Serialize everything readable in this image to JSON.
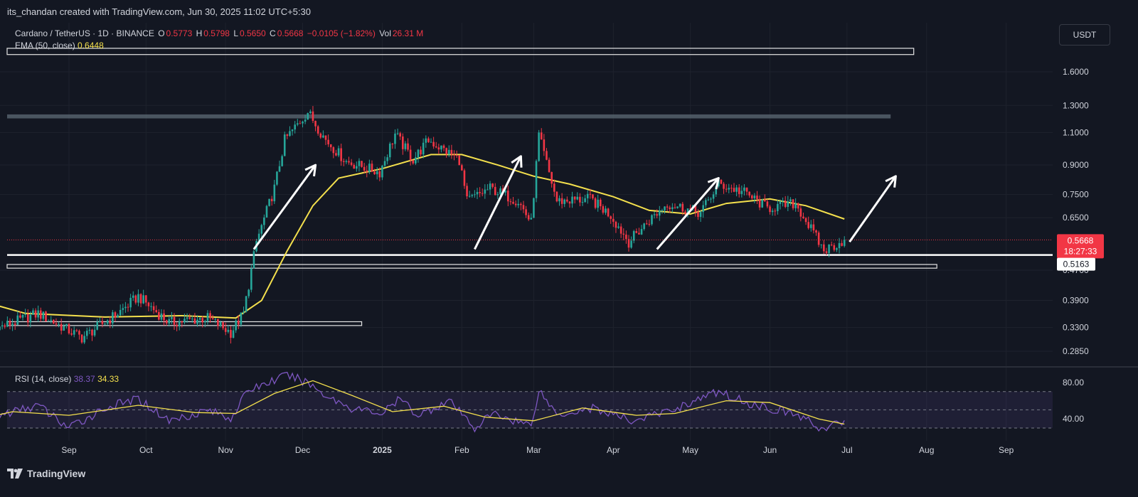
{
  "credit": "its_chandan created with TradingView.com, Jun 30, 2025 11:02 UTC+5:30",
  "legend": {
    "symbol": "Cardano / TetherUS · 1D · BINANCE",
    "o_label": "O",
    "o": "0.5773",
    "h_label": "H",
    "h": "0.5798",
    "l_label": "L",
    "l": "0.5650",
    "c_label": "C",
    "c": "0.5668",
    "change": "−0.0105 (−1.82%)",
    "vol_label": "Vol",
    "vol": "26.31 M"
  },
  "ema_legend": {
    "label": "EMA (50, close)",
    "value": "0.6448"
  },
  "rsi_legend": {
    "label": "RSI (14, close)",
    "rsi": "38.37",
    "ma": "34.33"
  },
  "currency_button": "USDT",
  "brand": "TradingView",
  "colors": {
    "up": "#26a69a",
    "down": "#f23645",
    "ema": "#f4e04d",
    "rsi": "#7e57c2",
    "rsi_ma": "#f4e04d",
    "bg": "#131722"
  },
  "price_badges": [
    {
      "price": "0.5668",
      "countdown": "18:27:33"
    },
    {
      "price": "0.5163"
    }
  ],
  "chart_data": [
    {
      "type": "candlestick",
      "title": "Cardano / TetherUS · 1D · BINANCE",
      "y_scale": "log",
      "y_ticks": [
        "1.6000",
        "1.3000",
        "1.1000",
        "0.9000",
        "0.7500",
        "0.6500",
        "0.4700",
        "0.3900",
        "0.3300",
        "0.2850"
      ],
      "x_ticks": [
        "Sep",
        "Oct",
        "Nov",
        "Dec",
        "2025",
        "Feb",
        "Mar",
        "Apr",
        "May",
        "Jun",
        "Jul",
        "Aug",
        "Sep"
      ],
      "anchors": [
        [
          "2024-07-25",
          0.4
        ],
        [
          "2024-08-05",
          0.33
        ],
        [
          "2024-08-20",
          0.36
        ],
        [
          "2024-09-06",
          0.31
        ],
        [
          "2024-09-20",
          0.36
        ],
        [
          "2024-09-28",
          0.4
        ],
        [
          "2024-10-10",
          0.34
        ],
        [
          "2024-10-25",
          0.35
        ],
        [
          "2024-11-03",
          0.32
        ],
        [
          "2024-11-08",
          0.36
        ],
        [
          "2024-11-13",
          0.56
        ],
        [
          "2024-11-20",
          0.78
        ],
        [
          "2024-11-24",
          1.05
        ],
        [
          "2024-12-03",
          1.25
        ],
        [
          "2024-12-10",
          1.05
        ],
        [
          "2024-12-18",
          0.92
        ],
        [
          "2024-12-31",
          0.86
        ],
        [
          "2025-01-06",
          1.09
        ],
        [
          "2025-01-13",
          0.93
        ],
        [
          "2025-01-19",
          1.05
        ],
        [
          "2025-01-31",
          0.93
        ],
        [
          "2025-02-03",
          0.72
        ],
        [
          "2025-02-12",
          0.78
        ],
        [
          "2025-02-23",
          0.72
        ],
        [
          "2025-02-28",
          0.63
        ],
        [
          "2025-03-03",
          1.08
        ],
        [
          "2025-03-10",
          0.72
        ],
        [
          "2025-03-23",
          0.73
        ],
        [
          "2025-03-31",
          0.66
        ],
        [
          "2025-04-07",
          0.56
        ],
        [
          "2025-04-15",
          0.64
        ],
        [
          "2025-04-22",
          0.71
        ],
        [
          "2025-05-05",
          0.67
        ],
        [
          "2025-05-12",
          0.8
        ],
        [
          "2025-05-22",
          0.76
        ],
        [
          "2025-05-31",
          0.69
        ],
        [
          "2025-06-11",
          0.71
        ],
        [
          "2025-06-22",
          0.53
        ],
        [
          "2025-06-30",
          0.5668
        ]
      ],
      "ema_50": [
        [
          "2024-07-25",
          0.395
        ],
        [
          "2024-08-15",
          0.36
        ],
        [
          "2024-09-15",
          0.352
        ],
        [
          "2024-10-15",
          0.355
        ],
        [
          "2024-11-05",
          0.35
        ],
        [
          "2024-11-15",
          0.39
        ],
        [
          "2024-11-25",
          0.53
        ],
        [
          "2024-12-05",
          0.7
        ],
        [
          "2024-12-15",
          0.83
        ],
        [
          "2025-01-01",
          0.88
        ],
        [
          "2025-01-20",
          0.96
        ],
        [
          "2025-02-01",
          0.96
        ],
        [
          "2025-02-15",
          0.9
        ],
        [
          "2025-03-01",
          0.84
        ],
        [
          "2025-03-15",
          0.8
        ],
        [
          "2025-04-01",
          0.74
        ],
        [
          "2025-04-15",
          0.68
        ],
        [
          "2025-05-01",
          0.665
        ],
        [
          "2025-05-15",
          0.71
        ],
        [
          "2025-06-01",
          0.73
        ],
        [
          "2025-06-15",
          0.7
        ],
        [
          "2025-06-30",
          0.6448
        ]
      ],
      "current_price": 0.5668,
      "support_level": 0.5163,
      "ema_last": 0.6448,
      "zones": [
        {
          "y_top": 1.85,
          "y_bottom": 1.78,
          "x_start": "2024-07-25",
          "x_end": "2025-07-27"
        },
        {
          "y_top": 1.23,
          "y_bottom": 1.2,
          "x_start": "2024-07-25",
          "x_end": "2025-07-18"
        },
        {
          "y_top": 0.487,
          "y_bottom": 0.476,
          "x_start": "2024-07-25",
          "x_end": "2025-08-05"
        },
        {
          "y_top": 0.342,
          "y_bottom": 0.334,
          "x_start": "2024-07-25",
          "x_end": "2024-12-24"
        }
      ],
      "arrows": [
        {
          "from": [
            "2024-11-12",
            0.535
          ],
          "to": [
            "2024-12-06",
            0.9
          ]
        },
        {
          "from": [
            "2025-02-06",
            0.535
          ],
          "to": [
            "2025-02-24",
            0.95
          ]
        },
        {
          "from": [
            "2025-04-18",
            0.535
          ],
          "to": [
            "2025-05-12",
            0.83
          ]
        },
        {
          "from": [
            "2025-07-02",
            0.56
          ],
          "to": [
            "2025-07-20",
            0.84
          ]
        }
      ]
    },
    {
      "type": "line",
      "title": "RSI (14, close)",
      "y_ticks": [
        "80.00",
        "40.00"
      ],
      "levels": [
        70,
        50,
        30
      ],
      "rsi_anchors": [
        [
          "2024-07-25",
          35
        ],
        [
          "2024-08-05",
          44
        ],
        [
          "2024-08-20",
          55
        ],
        [
          "2024-09-01",
          30
        ],
        [
          "2024-09-15",
          52
        ],
        [
          "2024-09-28",
          62
        ],
        [
          "2024-10-10",
          38
        ],
        [
          "2024-10-25",
          50
        ],
        [
          "2024-11-03",
          41
        ],
        [
          "2024-11-10",
          72
        ],
        [
          "2024-11-25",
          88
        ],
        [
          "2024-12-03",
          80
        ],
        [
          "2024-12-10",
          66
        ],
        [
          "2024-12-20",
          52
        ],
        [
          "2025-01-01",
          46
        ],
        [
          "2025-01-08",
          62
        ],
        [
          "2025-01-15",
          44
        ],
        [
          "2025-01-27",
          60
        ],
        [
          "2025-02-06",
          30
        ],
        [
          "2025-02-13",
          46
        ],
        [
          "2025-02-28",
          33
        ],
        [
          "2025-03-03",
          72
        ],
        [
          "2025-03-10",
          45
        ],
        [
          "2025-03-24",
          52
        ],
        [
          "2025-04-08",
          38
        ],
        [
          "2025-04-22",
          48
        ],
        [
          "2025-05-12",
          70
        ],
        [
          "2025-05-25",
          56
        ],
        [
          "2025-06-04",
          50
        ],
        [
          "2025-06-12",
          44
        ],
        [
          "2025-06-22",
          28
        ],
        [
          "2025-06-30",
          38.37
        ]
      ],
      "ma_anchors": [
        [
          "2024-07-25",
          38
        ],
        [
          "2024-08-10",
          48
        ],
        [
          "2024-09-01",
          44
        ],
        [
          "2024-09-28",
          55
        ],
        [
          "2024-10-20",
          47
        ],
        [
          "2024-11-05",
          46
        ],
        [
          "2024-11-20",
          68
        ],
        [
          "2024-12-05",
          82
        ],
        [
          "2024-12-20",
          66
        ],
        [
          "2025-01-05",
          48
        ],
        [
          "2025-01-25",
          54
        ],
        [
          "2025-02-10",
          42
        ],
        [
          "2025-03-01",
          38
        ],
        [
          "2025-03-20",
          52
        ],
        [
          "2025-04-10",
          44
        ],
        [
          "2025-04-25",
          46
        ],
        [
          "2025-05-15",
          60
        ],
        [
          "2025-06-01",
          58
        ],
        [
          "2025-06-20",
          40
        ],
        [
          "2025-06-30",
          34.33
        ]
      ]
    }
  ]
}
